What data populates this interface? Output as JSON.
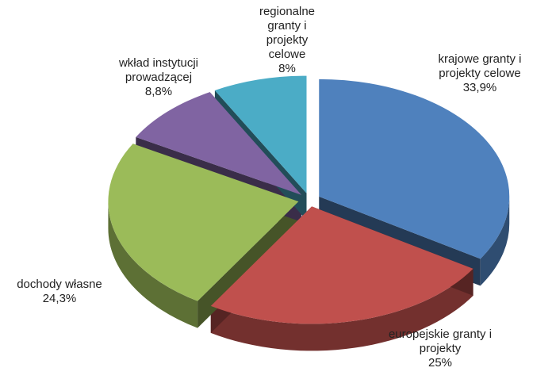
{
  "chart_data": {
    "type": "pie",
    "categories": [
      "krajowe granty i projekty celowe",
      "europejskie granty i projekty",
      "dochody własne",
      "wkład instytucji prowadzącej",
      "regionalne granty i projekty celowe"
    ],
    "values": [
      33.9,
      25,
      24.3,
      8.8,
      8
    ],
    "value_labels": [
      "33,9%",
      "25%",
      "24,3%",
      "8,8%",
      "8%"
    ],
    "colors": [
      "#4f81bd",
      "#c0504d",
      "#9bbb59",
      "#8064a2",
      "#4bacc6"
    ]
  }
}
